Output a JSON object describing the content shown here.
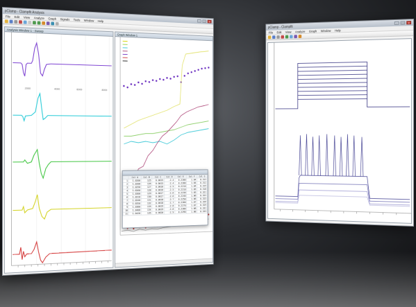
{
  "left_window": {
    "title": "pClamp - Clampfit Analysis",
    "menu": [
      "File",
      "Edit",
      "View",
      "Analyze",
      "Graph",
      "Signals",
      "Tools",
      "Window",
      "Help"
    ],
    "trace_panel_title": "Analysis Window 1 - Sweep",
    "graph_panel_title": "Graph Window 1",
    "x_ticks": [
      "2000",
      "4000",
      "6000",
      "8000"
    ],
    "trace_colors": [
      "#7b3fd1",
      "#1fc9d6",
      "#3cc43c",
      "#d2d21e",
      "#d43a3a"
    ]
  },
  "right_window": {
    "title": "pClamp - Clampfit",
    "trace_color": "#2c2a7c"
  },
  "results_table": {
    "headers": [
      "",
      "Col A",
      "Col B",
      "Col C",
      "Col D",
      "Col E",
      "Col F",
      "Col G"
    ],
    "rows": [
      [
        "1",
        "1.0200",
        "125",
        "0.0015",
        "-2.4",
        "0.2200",
        "1.04",
        "0.312"
      ],
      [
        "2",
        "1.0200",
        "126",
        "0.0015",
        "-2.4",
        "0.2200",
        "1.04",
        "0.312"
      ],
      [
        "3",
        "1.0250",
        "127",
        "0.0016",
        "-2.5",
        "0.2210",
        "1.04",
        "0.315"
      ],
      [
        "4",
        "1.0260",
        "128",
        "0.0016",
        "-2.5",
        "0.2210",
        "1.05",
        "0.318"
      ],
      [
        "5",
        "1.0300",
        "129",
        "0.0017",
        "-2.6",
        "0.2230",
        "1.05",
        "0.321"
      ],
      [
        "6",
        "1.0310",
        "130",
        "0.0017",
        "-2.6",
        "0.2240",
        "1.06",
        "0.322"
      ],
      [
        "7",
        "1.0340",
        "131",
        "0.0018",
        "-2.7",
        "0.2250",
        "1.06",
        "0.325"
      ],
      [
        "8",
        "1.0350",
        "132",
        "0.0018",
        "-2.7",
        "0.2260",
        "1.07",
        "0.326"
      ],
      [
        "9",
        "1.0380",
        "133",
        "0.0019",
        "-2.8",
        "0.2270",
        "1.07",
        "0.329"
      ],
      [
        "10",
        "1.0400",
        "134",
        "0.0019",
        "-2.8",
        "0.2280",
        "1.08",
        "0.331"
      ],
      [
        "11",
        "1.0420",
        "135",
        "0.0020",
        "-2.9",
        "0.2290",
        "1.08",
        "0.333"
      ]
    ]
  },
  "legend_entries": [
    "",
    "",
    "",
    "",
    "",
    "",
    ""
  ]
}
